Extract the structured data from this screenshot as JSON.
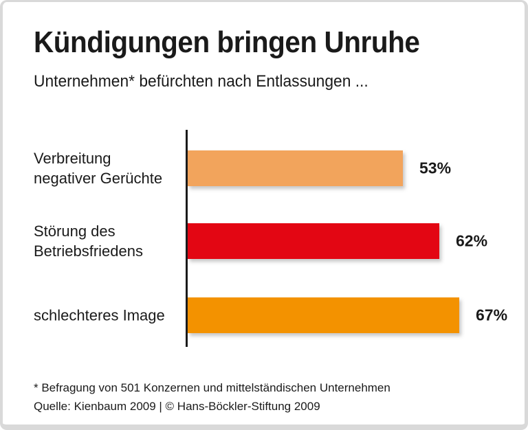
{
  "header": {
    "title": "Kündigungen bringen Unruhe",
    "subtitle": "Unternehmen* befürchten nach Entlassungen ..."
  },
  "chart_data": {
    "type": "bar",
    "orientation": "horizontal",
    "unit": "%",
    "title": "Kündigungen bringen Unruhe",
    "subtitle": "Unternehmen* befürchten nach Entlassungen ...",
    "categories": [
      "Verbreitung negativer Gerüchte",
      "Störung des Betriebsfriedens",
      "schlechteres Image"
    ],
    "values": [
      53,
      62,
      67
    ],
    "xlim": [
      0,
      75
    ],
    "grid": false,
    "legend": false,
    "axis_color": "#1a1a1a",
    "rows": [
      {
        "label": "Verbreitung\nnegativer Gerüchte",
        "value": 53,
        "value_label": "53%",
        "color": "#F2A45C"
      },
      {
        "label": "Störung des\nBetriebsfriedens",
        "value": 62,
        "value_label": "62%",
        "color": "#E30613"
      },
      {
        "label": "schlechteres Image",
        "value": 67,
        "value_label": "67%",
        "color": "#F39200"
      }
    ]
  },
  "footer": {
    "note": "* Befragung von 501 Konzernen und mittelständischen Unternehmen",
    "source": "Quelle: Kienbaum 2009 | © Hans-Böckler-Stiftung 2009"
  }
}
